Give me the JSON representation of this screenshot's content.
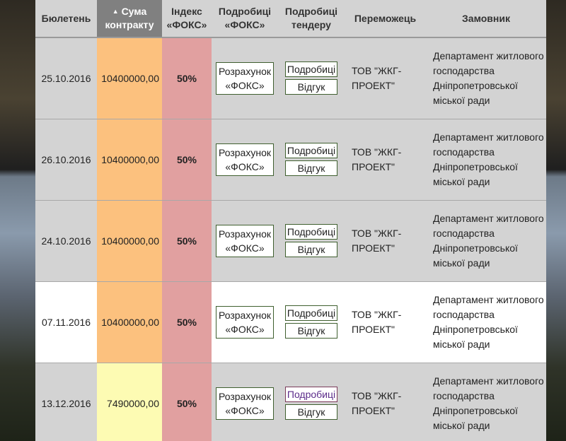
{
  "headers": {
    "bulletin": "Бюлетень",
    "sum_arrow": "▲",
    "sum": "Сума контракту",
    "index": "Індекс «ФОКС»",
    "details_fox": "Подробиці «ФОКС»",
    "details_tender": "Подробиці тендеру",
    "winner": "Переможець",
    "customer": "Замовник"
  },
  "rows": [
    {
      "date": "25.10.2016",
      "sum": "10400000,00",
      "index": "50%",
      "calc": "Розрахунок «ФОКС»",
      "details": "Подробиці",
      "response": "Відгук",
      "winner": "ТОВ \"ЖКГ-ПРОЕКТ\"",
      "customer": "Департамент житлового господарства Дніпропетровської міської ради"
    },
    {
      "date": "26.10.2016",
      "sum": "10400000,00",
      "index": "50%",
      "calc": "Розрахунок «ФОКС»",
      "details": "Подробиці",
      "response": "Відгук",
      "winner": "ТОВ \"ЖКГ-ПРОЕКТ\"",
      "customer": "Департамент житлового господарства Дніпропетровської міської ради"
    },
    {
      "date": "24.10.2016",
      "sum": "10400000,00",
      "index": "50%",
      "calc": "Розрахунок «ФОКС»",
      "details": "Подробиці",
      "response": "Відгук",
      "winner": "ТОВ \"ЖКГ-ПРОЕКТ\"",
      "customer": "Департамент житлового господарства Дніпропетровської міської ради"
    },
    {
      "date": "07.11.2016",
      "sum": "10400000,00",
      "index": "50%",
      "calc": "Розрахунок «ФОКС»",
      "details": "Подробиці",
      "response": "Відгук",
      "winner": "ТОВ \"ЖКГ-ПРОЕКТ\"",
      "customer": "Департамент житлового господарства Дніпропетровської міської ради"
    },
    {
      "date": "13.12.2016",
      "sum": "7490000,00",
      "index": "50%",
      "calc": "Розрахунок «ФОКС»",
      "details": "Подробиці",
      "response": "Відгук",
      "winner": "ТОВ \"ЖКГ-ПРОЕКТ\"",
      "customer": "Департамент житлового господарства Дніпропетровської міської ради"
    }
  ],
  "colors": {
    "sum_cell": "#fcc17e",
    "sum_cell_light": "#fdfbb3",
    "index_cell": "#e1a0a0",
    "sorted_header": "#808080",
    "row_gray": "#d3d3d3",
    "row_white": "#ffffff"
  }
}
